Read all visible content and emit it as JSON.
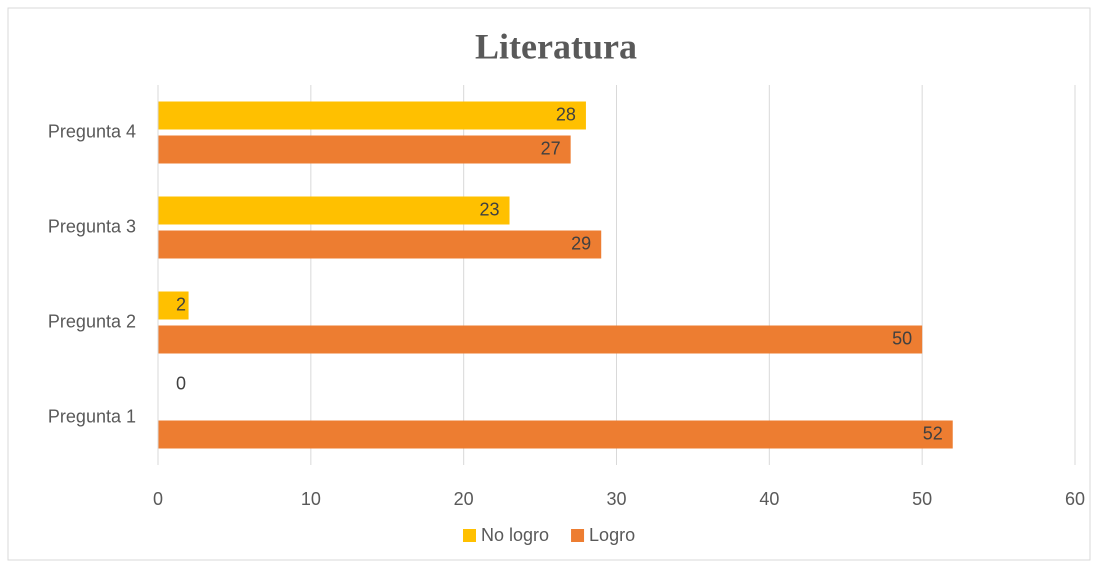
{
  "chart_data": {
    "type": "bar",
    "orientation": "horizontal",
    "title": "Literatura",
    "categories": [
      "Pregunta 1",
      "Pregunta 2",
      "Pregunta 3",
      "Pregunta 4"
    ],
    "series": [
      {
        "name": "No logro",
        "color": "#FFC000",
        "values": [
          0,
          2,
          23,
          28
        ]
      },
      {
        "name": "Logro",
        "color": "#ED7D31",
        "values": [
          52,
          50,
          29,
          27
        ]
      }
    ],
    "xlim": [
      0,
      60
    ],
    "xticks": [
      0,
      10,
      20,
      30,
      40,
      50,
      60
    ],
    "grid": true,
    "legend": "bottom"
  }
}
